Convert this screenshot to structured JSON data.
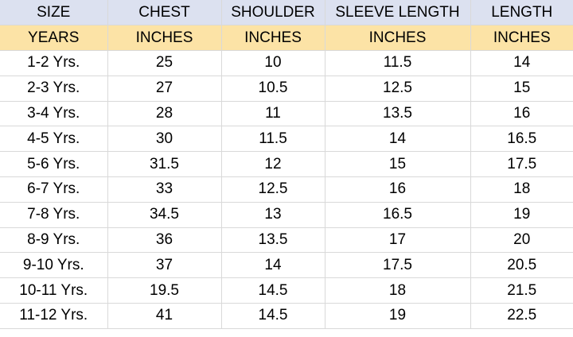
{
  "table": {
    "headers": [
      "SIZE",
      "CHEST",
      "SHOULDER",
      "SLEEVE LENGTH",
      "LENGTH"
    ],
    "units": [
      "YEARS",
      "INCHES",
      "INCHES",
      "INCHES",
      "INCHES"
    ],
    "rows": [
      [
        "1-2 Yrs.",
        "25",
        "10",
        "11.5",
        "14"
      ],
      [
        "2-3 Yrs.",
        "27",
        "10.5",
        "12.5",
        "15"
      ],
      [
        "3-4 Yrs.",
        "28",
        "11",
        "13.5",
        "16"
      ],
      [
        "4-5 Yrs.",
        "30",
        "11.5",
        "14",
        "16.5"
      ],
      [
        "5-6 Yrs.",
        "31.5",
        "12",
        "15",
        "17.5"
      ],
      [
        "6-7 Yrs.",
        "33",
        "12.5",
        "16",
        "18"
      ],
      [
        "7-8 Yrs.",
        "34.5",
        "13",
        "16.5",
        "19"
      ],
      [
        "8-9 Yrs.",
        "36",
        "13.5",
        "17",
        "20"
      ],
      [
        "9-10 Yrs.",
        "37",
        "14",
        "17.5",
        "20.5"
      ],
      [
        "10-11 Yrs.",
        "19.5",
        "14.5",
        "18",
        "21.5"
      ],
      [
        "11-12 Yrs.",
        "41",
        "14.5",
        "19",
        "22.5"
      ]
    ]
  },
  "colors": {
    "header_bg": "#dce1f0",
    "unit_bg": "#fce3a6",
    "grid": "#d9d9d9"
  }
}
